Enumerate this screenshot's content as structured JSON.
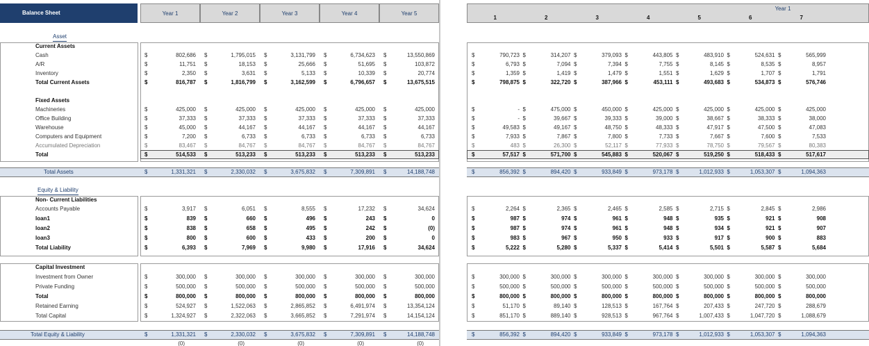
{
  "header": {
    "title": "Balance Sheet",
    "years": [
      "Year 1",
      "Year 2",
      "Year 3",
      "Year 4",
      "Year 5"
    ],
    "group": "Year 1",
    "periods": [
      "1",
      "2",
      "3",
      "4",
      "5",
      "6",
      "7"
    ]
  },
  "currency": "$",
  "rows": [
    {
      "label": "Asset"
    },
    {
      "label": "Current Assets"
    },
    {
      "label": "Cash",
      "years": [
        "802,686",
        "1,795,015",
        "3,131,799",
        "6,734,623",
        "13,550,869"
      ],
      "months": [
        "790,723",
        "314,207",
        "379,093",
        "443,805",
        "483,910",
        "524,631",
        "565,999"
      ]
    },
    {
      "label": "A/R",
      "years": [
        "11,751",
        "18,153",
        "25,666",
        "51,695",
        "103,872"
      ],
      "months": [
        "6,793",
        "7,094",
        "7,394",
        "7,755",
        "8,145",
        "8,535",
        "8,957"
      ]
    },
    {
      "label": "Inventory",
      "years": [
        "2,350",
        "3,631",
        "5,133",
        "10,339",
        "20,774"
      ],
      "months": [
        "1,359",
        "1,419",
        "1,479",
        "1,551",
        "1,629",
        "1,707",
        "1,791"
      ]
    },
    {
      "label": "Total Current Assets",
      "years": [
        "816,787",
        "1,816,799",
        "3,162,599",
        "6,796,657",
        "13,675,515"
      ],
      "months": [
        "798,875",
        "322,720",
        "387,966",
        "453,111",
        "493,683",
        "534,873",
        "576,746"
      ]
    },
    {
      "label": "Fixed Assets"
    },
    {
      "label": "Machineries",
      "years": [
        "425,000",
        "425,000",
        "425,000",
        "425,000",
        "425,000"
      ],
      "months": [
        "-",
        "475,000",
        "450,000",
        "425,000",
        "425,000",
        "425,000",
        "425,000"
      ]
    },
    {
      "label": "Office Building",
      "years": [
        "37,333",
        "37,333",
        "37,333",
        "37,333",
        "37,333"
      ],
      "months": [
        "-",
        "39,667",
        "39,333",
        "39,000",
        "38,667",
        "38,333",
        "38,000"
      ]
    },
    {
      "label": "Warehouse",
      "years": [
        "45,000",
        "44,167",
        "44,167",
        "44,167",
        "44,167"
      ],
      "months": [
        "49,583",
        "49,167",
        "48,750",
        "48,333",
        "47,917",
        "47,500",
        "47,083"
      ]
    },
    {
      "label": "Computers and Equipment",
      "years": [
        "7,200",
        "6,733",
        "6,733",
        "6,733",
        "6,733"
      ],
      "months": [
        "7,933",
        "7,867",
        "7,800",
        "7,733",
        "7,667",
        "7,600",
        "7,533"
      ]
    },
    {
      "label": "Accumulated Depreciation",
      "years": [
        "83,467",
        "84,767",
        "84,767",
        "84,767",
        "84,767"
      ],
      "months": [
        "483",
        "26,300",
        "52,117",
        "77,933",
        "78,750",
        "79,567",
        "80,383"
      ]
    },
    {
      "label": "Total",
      "years": [
        "514,533",
        "513,233",
        "513,233",
        "513,233",
        "513,233"
      ],
      "months": [
        "57,517",
        "571,700",
        "545,883",
        "520,067",
        "519,250",
        "518,433",
        "517,617"
      ]
    },
    {
      "label": "Total Assets",
      "years": [
        "1,331,321",
        "2,330,032",
        "3,675,832",
        "7,309,891",
        "14,188,748"
      ],
      "months": [
        "856,392",
        "894,420",
        "933,849",
        "973,178",
        "1,012,933",
        "1,053,307",
        "1,094,363"
      ]
    },
    {
      "label": "Equity & Liability"
    },
    {
      "label": "Non- Current Liabilities"
    },
    {
      "label": "Accounts Payable",
      "years": [
        "3,917",
        "6,051",
        "8,555",
        "17,232",
        "34,624"
      ],
      "months": [
        "2,264",
        "2,365",
        "2,465",
        "2,585",
        "2,715",
        "2,845",
        "2,986"
      ]
    },
    {
      "label": "loan1",
      "years": [
        "839",
        "660",
        "496",
        "243",
        "0"
      ],
      "months": [
        "987",
        "974",
        "961",
        "948",
        "935",
        "921",
        "908"
      ]
    },
    {
      "label": "loan2",
      "years": [
        "838",
        "658",
        "495",
        "242",
        "(0)"
      ],
      "months": [
        "987",
        "974",
        "961",
        "948",
        "934",
        "921",
        "907"
      ]
    },
    {
      "label": "loan3",
      "years": [
        "800",
        "600",
        "433",
        "200",
        "0"
      ],
      "months": [
        "983",
        "967",
        "950",
        "933",
        "917",
        "900",
        "883"
      ]
    },
    {
      "label": "Total Liability",
      "years": [
        "6,393",
        "7,969",
        "9,980",
        "17,916",
        "34,624"
      ],
      "months": [
        "5,222",
        "5,280",
        "5,337",
        "5,414",
        "5,501",
        "5,587",
        "5,684"
      ]
    },
    {
      "label": "Capital Investment"
    },
    {
      "label": "Investment from Owner",
      "years": [
        "300,000",
        "300,000",
        "300,000",
        "300,000",
        "300,000"
      ],
      "months": [
        "300,000",
        "300,000",
        "300,000",
        "300,000",
        "300,000",
        "300,000",
        "300,000"
      ]
    },
    {
      "label": "Private Funding",
      "years": [
        "500,000",
        "500,000",
        "500,000",
        "500,000",
        "500,000"
      ],
      "months": [
        "500,000",
        "500,000",
        "500,000",
        "500,000",
        "500,000",
        "500,000",
        "500,000"
      ]
    },
    {
      "label": "Total",
      "years": [
        "800,000",
        "800,000",
        "800,000",
        "800,000",
        "800,000"
      ],
      "months": [
        "800,000",
        "800,000",
        "800,000",
        "800,000",
        "800,000",
        "800,000",
        "800,000"
      ]
    },
    {
      "label": "Retained Earning",
      "years": [
        "524,927",
        "1,522,063",
        "2,865,852",
        "6,491,974",
        "13,354,124"
      ],
      "months": [
        "51,170",
        "89,140",
        "128,513",
        "167,764",
        "207,433",
        "247,720",
        "288,679"
      ]
    },
    {
      "label": "Total Capital",
      "years": [
        "1,324,927",
        "2,322,063",
        "3,665,852",
        "7,291,974",
        "14,154,124"
      ],
      "months": [
        "851,170",
        "889,140",
        "928,513",
        "967,764",
        "1,007,433",
        "1,047,720",
        "1,088,679"
      ]
    },
    {
      "label": "Total Equity & Liability",
      "years": [
        "1,331,321",
        "2,330,032",
        "3,675,832",
        "7,309,891",
        "14,188,748"
      ],
      "months": [
        "856,392",
        "894,420",
        "933,849",
        "973,178",
        "1,012,933",
        "1,053,307",
        "1,094,363"
      ]
    },
    {
      "years": [
        "(0)",
        "(0)",
        "(0)",
        "(0)",
        "(0)"
      ]
    }
  ]
}
